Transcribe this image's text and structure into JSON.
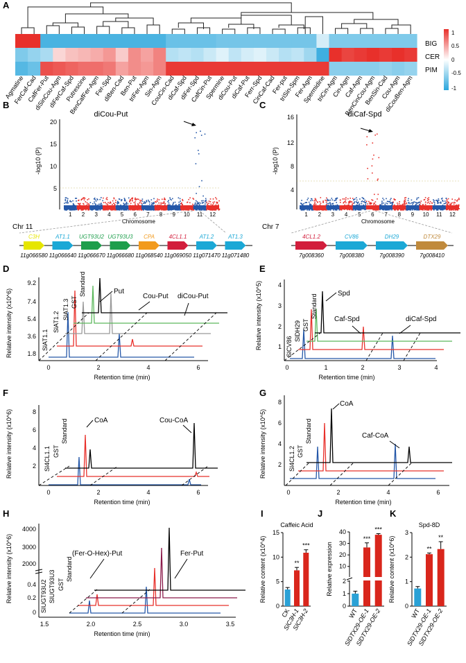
{
  "panel_labels": [
    "A",
    "B",
    "C",
    "D",
    "E",
    "F",
    "G",
    "H",
    "I",
    "J",
    "K"
  ],
  "panel_a": {
    "row_labels": [
      "BIG",
      "CER",
      "PIM"
    ],
    "colorbar_ticks": [
      "1",
      "0.5",
      "0",
      "-0.5",
      "-1"
    ],
    "columns": [
      "Agmatine",
      "FerCaf-Cad",
      "CafFer-Put",
      "diSinCou-Agm",
      "diFerCaf-Spd",
      "Putrescine",
      "BenCafFer-Agm",
      "Fer-Spd",
      "diBen-Cad",
      "Ben-Put",
      "triFer-Agm",
      "Sin-Agm",
      "CouCin-Cad",
      "diCaf-Spd",
      "diFer-Spd",
      "CafCin-Put",
      "Spermine",
      "diCou-Put",
      "diCaf-Put",
      "Ferr-Spd",
      "CinCaf-Cad",
      "Fer-put",
      "triSin-Spm",
      "Fer-Agm",
      "Spermidine",
      "triCin-Agm",
      "Cin-Agm",
      "Caf-Agm",
      "BenCinCou-Agm",
      "BenSin-Cad",
      "Cou-Agm",
      "diCouBen-Agm"
    ]
  },
  "panel_b": {
    "title": "diCou-Put",
    "ylabel": "-log10 (P)",
    "yticks": [
      "20",
      "15",
      "10",
      "5"
    ],
    "xticks": [
      "1",
      "2",
      "3",
      "4",
      "5",
      "6",
      "7",
      "8",
      "9",
      "10",
      "11",
      "12"
    ],
    "xlabel": "Chromosome",
    "chr_label": "Chr 11",
    "genes": [
      {
        "name": "C3H",
        "id": "11g066580",
        "color": "#e6e600"
      },
      {
        "name": "AT1.1",
        "id": "11g066640",
        "color": "#1ba8d6"
      },
      {
        "name": "UGT93U2",
        "id": "11g066670",
        "color": "#1e9e4c"
      },
      {
        "name": "UGT93U3",
        "id": "11g066680",
        "color": "#1e9e4c"
      },
      {
        "name": "CPA",
        "id": "11g068540",
        "color": "#f29a1d"
      },
      {
        "name": "4CL1.1",
        "id": "11g069050",
        "color": "#d21e3c"
      },
      {
        "name": "AT1.2",
        "id": "11g071470",
        "color": "#1ba8d6"
      },
      {
        "name": "AT1.3",
        "id": "11g071480",
        "color": "#1ba8d6"
      }
    ]
  },
  "panel_c": {
    "title": "diCaf-Spd",
    "ylabel": "-log10 (P)",
    "yticks": [
      "16",
      "12",
      "8",
      "4"
    ],
    "xticks": [
      "1",
      "2",
      "3",
      "4",
      "5",
      "6",
      "7",
      "8",
      "9",
      "10",
      "11",
      "12"
    ],
    "xlabel": "Chromosome",
    "chr_label": "Chr 7",
    "genes": [
      {
        "name": "4CL1.2",
        "id": "7g008360",
        "color": "#d21e3c"
      },
      {
        "name": "CV86",
        "id": "7g008380",
        "color": "#1ba8d6"
      },
      {
        "name": "DH29",
        "id": "7g008390",
        "color": "#1ba8d6"
      },
      {
        "name": "DTX29",
        "id": "7g008410",
        "color": "#c08a3c"
      }
    ]
  },
  "panel_d": {
    "ylabel": "Relative intensity (x10^6)",
    "yticks": [
      "9.2",
      "7.4",
      "5.4",
      "3.6",
      "1.8"
    ],
    "xticks": [
      "0",
      "2",
      "4",
      "6"
    ],
    "xlabel": "Retention time (min)",
    "traces": [
      "SlAT1.1",
      "SlAT1.2",
      "SlAT1.3",
      "GST",
      "Standard"
    ],
    "annotations": [
      "Put",
      "Cou-Put",
      "diCou-Put"
    ]
  },
  "panel_e": {
    "ylabel": "Relative intensity (x10^5)",
    "yticks": [
      "4",
      "3",
      "2",
      "1"
    ],
    "xticks": [
      "0",
      "1",
      "2",
      "3",
      "4"
    ],
    "xlabel": "Retention time (min)",
    "traces": [
      "SlCV86",
      "SlDH29",
      "GST",
      "Standard"
    ],
    "annotations": [
      "Spd",
      "Caf-Spd",
      "diCaf-Spd"
    ]
  },
  "panel_f": {
    "ylabel": "Relative intensity (x10^6)",
    "yticks": [
      "8",
      "6",
      "4",
      "2"
    ],
    "xticks": [
      "0",
      "2",
      "4",
      "6"
    ],
    "xlabel": "Retention time (min)",
    "traces": [
      "Sl4CL1.1",
      "GST",
      "Standard"
    ],
    "annotations": [
      "CoA",
      "Cou-CoA"
    ]
  },
  "panel_g": {
    "ylabel": "Relative intensity (x10^5)",
    "yticks": [
      "8",
      "6",
      "4",
      "2"
    ],
    "xticks": [
      "0",
      "2",
      "4",
      "6"
    ],
    "xlabel": "Retention time (min)",
    "traces": [
      "Sl4CL1.2",
      "GST",
      "Standard"
    ],
    "annotations": [
      "CoA",
      "Caf-CoA"
    ]
  },
  "panel_h": {
    "ylabel": "Relative intensity (x10^6)",
    "yticks": [
      "4000",
      "3000",
      "2000",
      "0.4",
      "0.2",
      "0"
    ],
    "xticks": [
      "1.5",
      "2.0",
      "2.5",
      "3.0",
      "3.5"
    ],
    "xlabel": "Retention time (min)",
    "traces": [
      "SlUGT93U2",
      "SlUGT93U3",
      "GST",
      "Standard"
    ],
    "annotations": [
      "(Fer-O-Hex)-Put",
      "Fer-Put"
    ]
  },
  "chart_data": [
    {
      "type": "bar",
      "panel": "I",
      "title": "Caffeic Acid",
      "ylabel": "Relative content (x10^4)",
      "ylim": [
        0,
        15
      ],
      "yticks": [
        "0",
        "5",
        "10",
        "15"
      ],
      "categories": [
        "CK",
        "SlC3H-1",
        "SlC3H-2"
      ],
      "values": [
        3.4,
        7.3,
        10.9
      ],
      "errors": [
        0.4,
        0.6,
        0.6
      ],
      "significance": [
        "",
        "**",
        "***"
      ]
    },
    {
      "type": "bar",
      "panel": "J",
      "ylabel": "Relative expression",
      "ylim": [
        0,
        40
      ],
      "yticks": [
        "0",
        "1",
        "2",
        "10",
        "20",
        "30",
        "40"
      ],
      "categories": [
        "WT",
        "SlDTX29-OE-1",
        "SlDTX29-OE-2"
      ],
      "values": [
        1,
        26.5,
        37.5
      ],
      "errors": [
        0.2,
        4,
        1
      ],
      "significance": [
        "",
        "***",
        "***"
      ]
    },
    {
      "type": "bar",
      "panel": "K",
      "title": "Spd-8D",
      "ylabel": "Relative content (x10^6)",
      "ylim": [
        0,
        3
      ],
      "yticks": [
        "0",
        "1",
        "2",
        "3"
      ],
      "categories": [
        "WT",
        "SlDTX29-OE-1",
        "SlDTX29-OE-2"
      ],
      "values": [
        0.72,
        2.12,
        2.33
      ],
      "errors": [
        0.08,
        0.05,
        0.3
      ],
      "significance": [
        "",
        "**",
        "**"
      ]
    }
  ],
  "colors": {
    "red": "#e8302b",
    "blue": "#2457a8",
    "green": "#5cb85c",
    "gray": "#999999",
    "black": "#000000",
    "lightblue": "#2aa1d6",
    "barred": "#d9261c"
  }
}
